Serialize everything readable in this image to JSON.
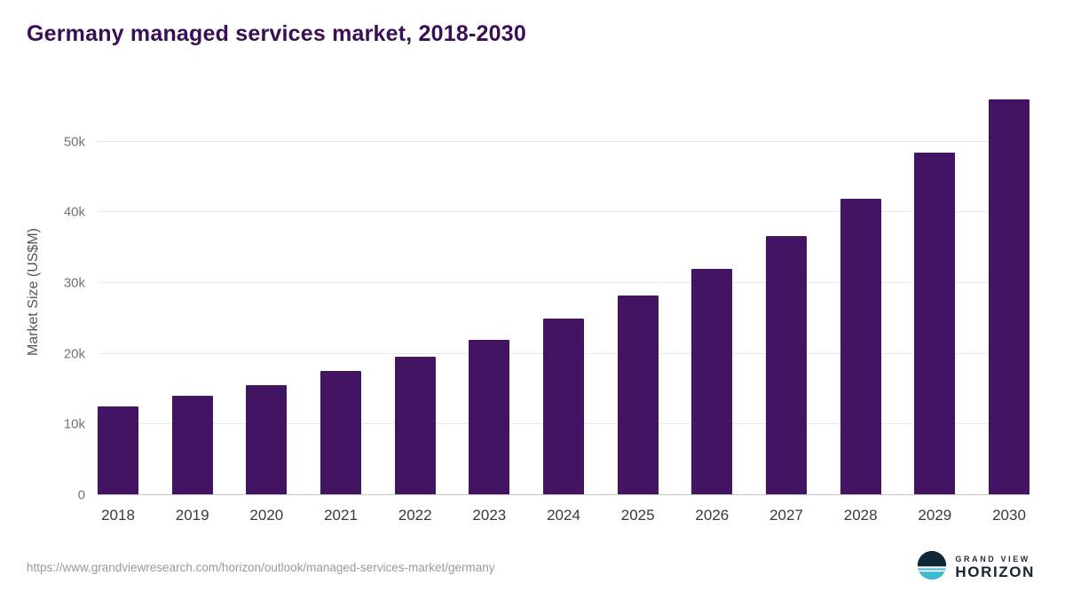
{
  "chart": {
    "title": "Germany managed services market, 2018-2030",
    "ylabel": "Market Size (US$M)"
  },
  "footer": {
    "source_url": "https://www.grandviewresearch.com/horizon/outlook/managed-services-market/germany",
    "logo": {
      "line1": "GRAND VIEW",
      "line2": "HORIZON"
    }
  },
  "colors": {
    "bar": "#421462",
    "title": "#3a0e55",
    "grid": "#e9e9e9",
    "axis": "#c6c6c6",
    "tick_text": "#757575",
    "logo_navy": "#0e2837",
    "logo_teal": "#39bcd8"
  },
  "chart_data": {
    "type": "bar",
    "title": "Germany managed services market, 2018-2030",
    "xlabel": "",
    "ylabel": "Market Size (US$M)",
    "categories": [
      "2018",
      "2019",
      "2020",
      "2021",
      "2022",
      "2023",
      "2024",
      "2025",
      "2026",
      "2027",
      "2028",
      "2029",
      "2030"
    ],
    "values": [
      12400,
      13900,
      15500,
      17400,
      19500,
      21900,
      24800,
      28100,
      31900,
      36500,
      41800,
      48300,
      55900
    ],
    "ylim": [
      0,
      57500
    ],
    "yticks": [
      {
        "value": 0,
        "label": "0"
      },
      {
        "value": 10000,
        "label": "10k"
      },
      {
        "value": 20000,
        "label": "20k"
      },
      {
        "value": 30000,
        "label": "30k"
      },
      {
        "value": 40000,
        "label": "40k"
      },
      {
        "value": 50000,
        "label": "50k"
      }
    ],
    "grid": "horizontal",
    "legend": "none",
    "bar_color": "#421462"
  }
}
